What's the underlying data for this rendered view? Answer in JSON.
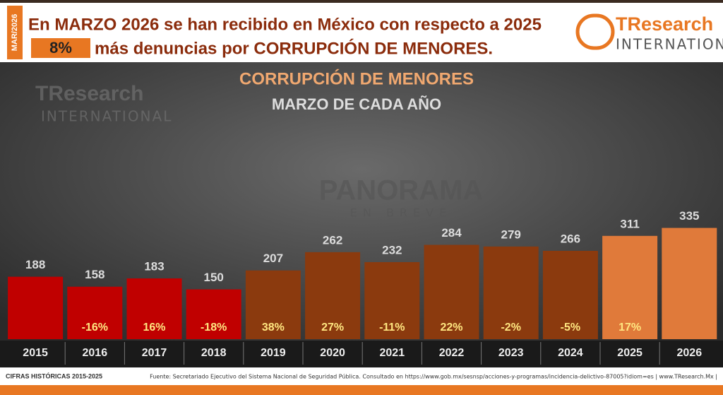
{
  "header": {
    "date": "MAR/2026",
    "line1": "En MARZO 2026 se han recibido en México con respecto a 2025",
    "change": "8%",
    "line2": "más denuncias por CORRUPCIÓN DE MENORES.",
    "logo_main": "TResearch",
    "logo_sub": "INTERNATIONAL"
  },
  "watermark": {
    "main": "PANORAMA",
    "sub": "EN BREVE"
  },
  "chart_data": {
    "type": "bar",
    "title": "CORRUPCIÓN DE MENORES",
    "subtitle": "MARZO DE CADA AÑO",
    "categories": [
      "2015",
      "2016",
      "2017",
      "2018",
      "2019",
      "2020",
      "2021",
      "2022",
      "2023",
      "2024",
      "2025",
      "2026"
    ],
    "values": [
      188,
      158,
      183,
      150,
      207,
      262,
      232,
      284,
      279,
      266,
      311,
      335
    ],
    "colors": [
      "#c00000",
      "#c00000",
      "#c00000",
      "#c00000",
      "#8b3a0e",
      "#8b3a0e",
      "#8b3a0e",
      "#8b3a0e",
      "#8b3a0e",
      "#8b3a0e",
      "#e07a3a",
      "#e07a3a"
    ],
    "change_labels": [
      null,
      "-16%",
      "16%",
      "-18%",
      "38%",
      "27%",
      "-11%",
      "22%",
      "-2%",
      "-5%",
      "17%",
      null
    ]
  },
  "footer": {
    "left": "CIFRAS HISTÓRICAS 2015-2025",
    "source": "Fuente: Secretariado Ejecutivo del Sistema Nacional de Seguridad Pública. Consultado en https://www.gob.mx/sesnsp/acciones-y-programas/incidencia-delictivo-87005?idiom=es | www.TResearch.Mx |"
  }
}
